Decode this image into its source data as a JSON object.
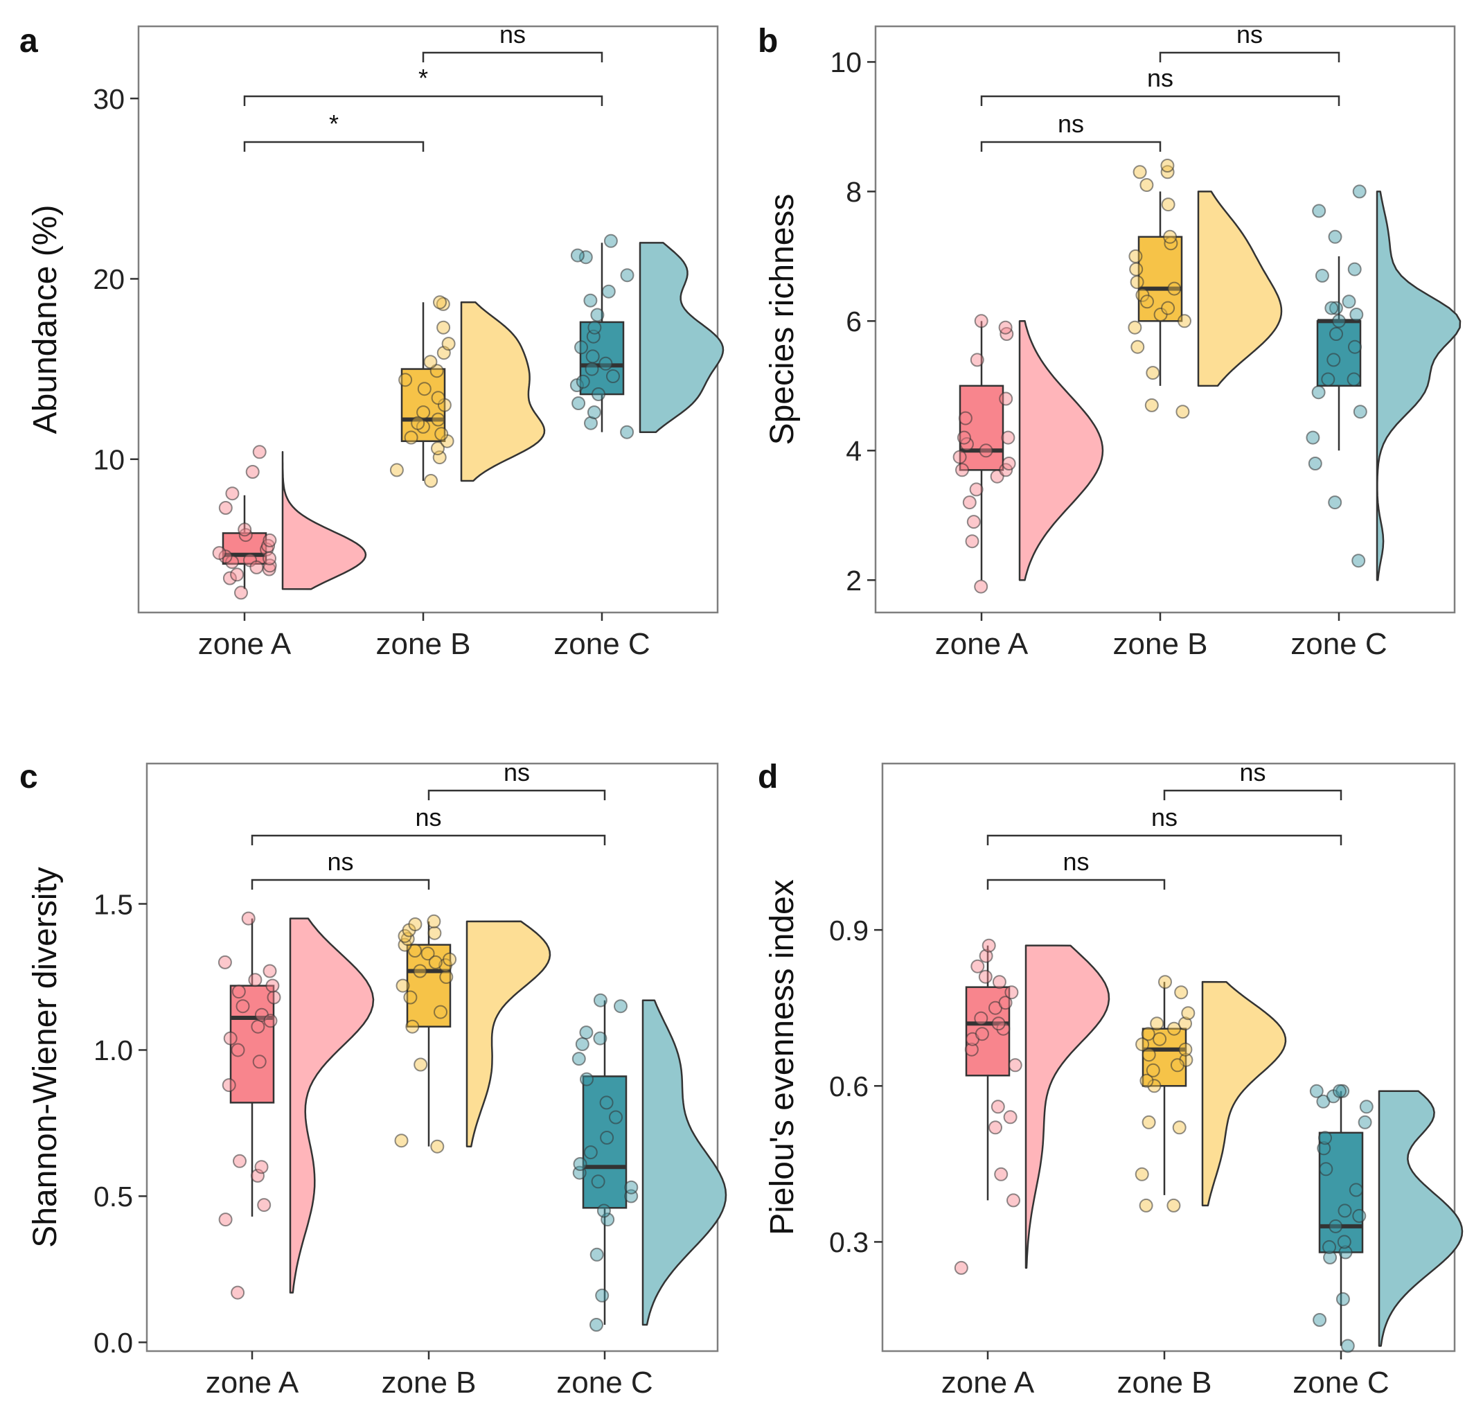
{
  "colors": {
    "zone_A": "#F8858D",
    "zone_B": "#F6C348",
    "zone_C": "#3E99A6",
    "zone_A_light": "#FFB5BA",
    "zone_B_light": "#FDDE95",
    "zone_C_light": "#93C8CE",
    "frame": "#7F7F7F",
    "line": "#333333"
  },
  "chart_data": [
    {
      "panel": "a",
      "type": "box",
      "ylabel": "Abundance (%)",
      "ylim": [
        1.5,
        34
      ],
      "yticks": [
        10,
        20,
        30
      ],
      "ytick_labels": [
        "10",
        "20",
        "30"
      ],
      "categories": [
        "zone A",
        "zone B",
        "zone C"
      ],
      "boxes": [
        {
          "whisker_low": 2.8,
          "q1": 4.2,
          "median": 4.7,
          "q3": 5.9,
          "whisker_high": 8.0
        },
        {
          "whisker_low": 8.8,
          "q1": 11.0,
          "median": 12.2,
          "q3": 15.0,
          "whisker_high": 18.7
        },
        {
          "whisker_low": 11.5,
          "q1": 13.6,
          "median": 15.2,
          "q3": 17.6,
          "whisker_high": 22.0
        }
      ],
      "points": [
        [
          2.6,
          3.4,
          3.6,
          3.9,
          4.1,
          4.3,
          4.4,
          4.6,
          4.8,
          5.0,
          5.2,
          5.5,
          5.8,
          6.1,
          7.3,
          8.1,
          9.3,
          10.4,
          4.0,
          4.5
        ],
        [
          8.8,
          9.4,
          10.1,
          10.6,
          11.0,
          11.4,
          11.8,
          12.2,
          12.6,
          13.0,
          13.4,
          13.9,
          14.4,
          14.9,
          15.4,
          15.9,
          16.4,
          17.3,
          18.6,
          18.7,
          12.0,
          11.2
        ],
        [
          11.5,
          12.0,
          12.6,
          13.1,
          13.6,
          14.1,
          14.6,
          15.0,
          15.3,
          15.7,
          16.2,
          16.8,
          17.3,
          18.0,
          18.8,
          19.3,
          20.2,
          21.2,
          21.3,
          22.1,
          14.3
        ]
      ],
      "density_range": [
        [
          2.8,
          10.4
        ],
        [
          8.8,
          18.7
        ],
        [
          11.5,
          22.0
        ]
      ],
      "density_modes": [
        [
          [
            4.7,
            1.0,
            1.3
          ]
        ],
        [
          [
            11.3,
            0.75,
            1.3
          ],
          [
            14.5,
            0.6,
            1.5
          ],
          [
            17.0,
            0.35,
            1.2
          ]
        ],
        [
          [
            13.2,
            0.45,
            1.2
          ],
          [
            16.2,
            0.9,
            1.6
          ],
          [
            20.5,
            0.5,
            1.3
          ]
        ]
      ],
      "comparisons": [
        {
          "groups": [
            0,
            1
          ],
          "label": "*"
        },
        {
          "groups": [
            0,
            2
          ],
          "label": "*"
        },
        {
          "groups": [
            1,
            2
          ],
          "label": "ns"
        }
      ]
    },
    {
      "panel": "b",
      "type": "box",
      "ylabel": "Species richness",
      "ylim": [
        1.5,
        10.55
      ],
      "yticks": [
        2,
        4,
        6,
        8,
        10
      ],
      "ytick_labels": [
        "2",
        "4",
        "6",
        "8",
        "10"
      ],
      "categories": [
        "zone A",
        "zone B",
        "zone C"
      ],
      "boxes": [
        {
          "whisker_low": 2.0,
          "q1": 3.7,
          "median": 4.0,
          "q3": 5.0,
          "whisker_high": 6.0
        },
        {
          "whisker_low": 5.0,
          "q1": 6.0,
          "median": 6.5,
          "q3": 7.3,
          "whisker_high": 8.0
        },
        {
          "whisker_low": 4.0,
          "q1": 5.0,
          "median": 6.0,
          "q3": 6.0,
          "whisker_high": 7.0
        }
      ],
      "points": [
        [
          1.9,
          2.6,
          2.9,
          3.2,
          3.4,
          3.6,
          3.7,
          3.8,
          3.9,
          4.0,
          4.1,
          4.2,
          4.2,
          4.5,
          4.8,
          5.4,
          5.8,
          5.9,
          6.0,
          3.7
        ],
        [
          4.6,
          4.7,
          5.2,
          5.6,
          5.9,
          6.0,
          6.1,
          6.2,
          6.4,
          6.5,
          6.6,
          6.8,
          7.0,
          7.2,
          7.3,
          7.8,
          8.1,
          8.3,
          8.3,
          8.4,
          6.3
        ],
        [
          2.3,
          3.2,
          3.8,
          4.2,
          4.6,
          4.9,
          5.1,
          5.1,
          5.4,
          5.6,
          5.8,
          6.0,
          6.1,
          6.2,
          6.2,
          6.3,
          6.7,
          6.8,
          7.3,
          7.7,
          8.0
        ]
      ],
      "density_range": [
        [
          2.0,
          6.0
        ],
        [
          5.0,
          8.0
        ],
        [
          2.0,
          8.0
        ]
      ],
      "density_modes": [
        [
          [
            4.0,
            1.0,
            0.85
          ]
        ],
        [
          [
            6.1,
            0.9,
            0.65
          ],
          [
            7.3,
            0.35,
            0.5
          ]
        ],
        [
          [
            5.0,
            0.6,
            0.45
          ],
          [
            6.0,
            1.0,
            0.4
          ],
          [
            2.6,
            0.08,
            0.3
          ],
          [
            7.2,
            0.15,
            0.5
          ]
        ]
      ],
      "comparisons": [
        {
          "groups": [
            0,
            1
          ],
          "label": "ns"
        },
        {
          "groups": [
            0,
            2
          ],
          "label": "ns"
        },
        {
          "groups": [
            1,
            2
          ],
          "label": "ns"
        }
      ]
    },
    {
      "panel": "c",
      "type": "box",
      "ylabel": "Shannon-Wiener diversity",
      "ylim": [
        -0.03,
        1.98
      ],
      "yticks": [
        0.0,
        0.5,
        1.0,
        1.5
      ],
      "ytick_labels": [
        "0.0",
        "0.5",
        "1.0",
        "1.5"
      ],
      "categories": [
        "zone A",
        "zone B",
        "zone C"
      ],
      "boxes": [
        {
          "whisker_low": 0.43,
          "q1": 0.82,
          "median": 1.11,
          "q3": 1.22,
          "whisker_high": 1.45
        },
        {
          "whisker_low": 0.67,
          "q1": 1.08,
          "median": 1.27,
          "q3": 1.36,
          "whisker_high": 1.44
        },
        {
          "whisker_low": 0.06,
          "q1": 0.46,
          "median": 0.6,
          "q3": 0.91,
          "whisker_high": 1.17
        }
      ],
      "points": [
        [
          0.17,
          0.42,
          0.47,
          0.57,
          0.6,
          0.62,
          0.88,
          0.96,
          1.0,
          1.04,
          1.08,
          1.12,
          1.15,
          1.18,
          1.2,
          1.22,
          1.24,
          1.27,
          1.3,
          1.45,
          1.1
        ],
        [
          0.67,
          0.69,
          0.95,
          1.08,
          1.13,
          1.18,
          1.22,
          1.25,
          1.27,
          1.29,
          1.31,
          1.33,
          1.34,
          1.36,
          1.38,
          1.39,
          1.4,
          1.41,
          1.43,
          1.44,
          1.3
        ],
        [
          0.06,
          0.16,
          0.3,
          0.42,
          0.45,
          0.5,
          0.53,
          0.58,
          0.61,
          0.65,
          0.7,
          0.77,
          0.82,
          0.9,
          0.97,
          1.02,
          1.04,
          1.06,
          1.15,
          1.17,
          0.55
        ]
      ],
      "density_range": [
        [
          0.17,
          1.45
        ],
        [
          0.67,
          1.44
        ],
        [
          0.06,
          1.17
        ]
      ],
      "density_modes": [
        [
          [
            1.17,
            0.85,
            0.16
          ],
          [
            0.55,
            0.25,
            0.18
          ]
        ],
        [
          [
            1.33,
            1.0,
            0.12
          ],
          [
            0.95,
            0.3,
            0.15
          ]
        ],
        [
          [
            0.5,
            0.85,
            0.18
          ],
          [
            0.95,
            0.35,
            0.15
          ]
        ]
      ],
      "comparisons": [
        {
          "groups": [
            0,
            1
          ],
          "label": "ns"
        },
        {
          "groups": [
            0,
            2
          ],
          "label": "ns"
        },
        {
          "groups": [
            1,
            2
          ],
          "label": "ns"
        }
      ]
    },
    {
      "panel": "d",
      "type": "box",
      "ylabel": "Pielou's evenness index",
      "ylim": [
        0.09,
        1.22
      ],
      "yticks": [
        0.3,
        0.6,
        0.9
      ],
      "ytick_labels": [
        "0.3",
        "0.6",
        "0.9"
      ],
      "categories": [
        "zone A",
        "zone B",
        "zone C"
      ],
      "boxes": [
        {
          "whisker_low": 0.38,
          "q1": 0.62,
          "median": 0.72,
          "q3": 0.79,
          "whisker_high": 0.87
        },
        {
          "whisker_low": 0.39,
          "q1": 0.6,
          "median": 0.67,
          "q3": 0.71,
          "whisker_high": 0.8
        },
        {
          "whisker_low": 0.1,
          "q1": 0.28,
          "median": 0.33,
          "q3": 0.51,
          "whisker_high": 0.59
        }
      ],
      "points": [
        [
          0.25,
          0.38,
          0.43,
          0.52,
          0.54,
          0.56,
          0.64,
          0.67,
          0.69,
          0.71,
          0.72,
          0.73,
          0.75,
          0.76,
          0.78,
          0.8,
          0.81,
          0.83,
          0.85,
          0.87,
          0.7
        ],
        [
          0.37,
          0.37,
          0.43,
          0.52,
          0.53,
          0.6,
          0.61,
          0.63,
          0.65,
          0.66,
          0.67,
          0.68,
          0.69,
          0.7,
          0.71,
          0.72,
          0.72,
          0.74,
          0.78,
          0.8,
          0.64
        ],
        [
          0.1,
          0.15,
          0.19,
          0.27,
          0.28,
          0.29,
          0.3,
          0.33,
          0.36,
          0.4,
          0.44,
          0.48,
          0.5,
          0.53,
          0.56,
          0.57,
          0.58,
          0.59,
          0.59,
          0.59,
          0.35
        ]
      ],
      "density_range": [
        [
          0.25,
          0.87
        ],
        [
          0.37,
          0.8
        ],
        [
          0.1,
          0.59
        ]
      ],
      "density_modes": [
        [
          [
            0.77,
            1.0,
            0.09
          ],
          [
            0.5,
            0.2,
            0.1
          ]
        ],
        [
          [
            0.69,
            1.0,
            0.07
          ],
          [
            0.5,
            0.25,
            0.08
          ]
        ],
        [
          [
            0.32,
            0.85,
            0.08
          ],
          [
            0.55,
            0.55,
            0.05
          ]
        ]
      ],
      "comparisons": [
        {
          "groups": [
            0,
            1
          ],
          "label": "ns"
        },
        {
          "groups": [
            0,
            2
          ],
          "label": "ns"
        },
        {
          "groups": [
            1,
            2
          ],
          "label": "ns"
        }
      ]
    }
  ]
}
